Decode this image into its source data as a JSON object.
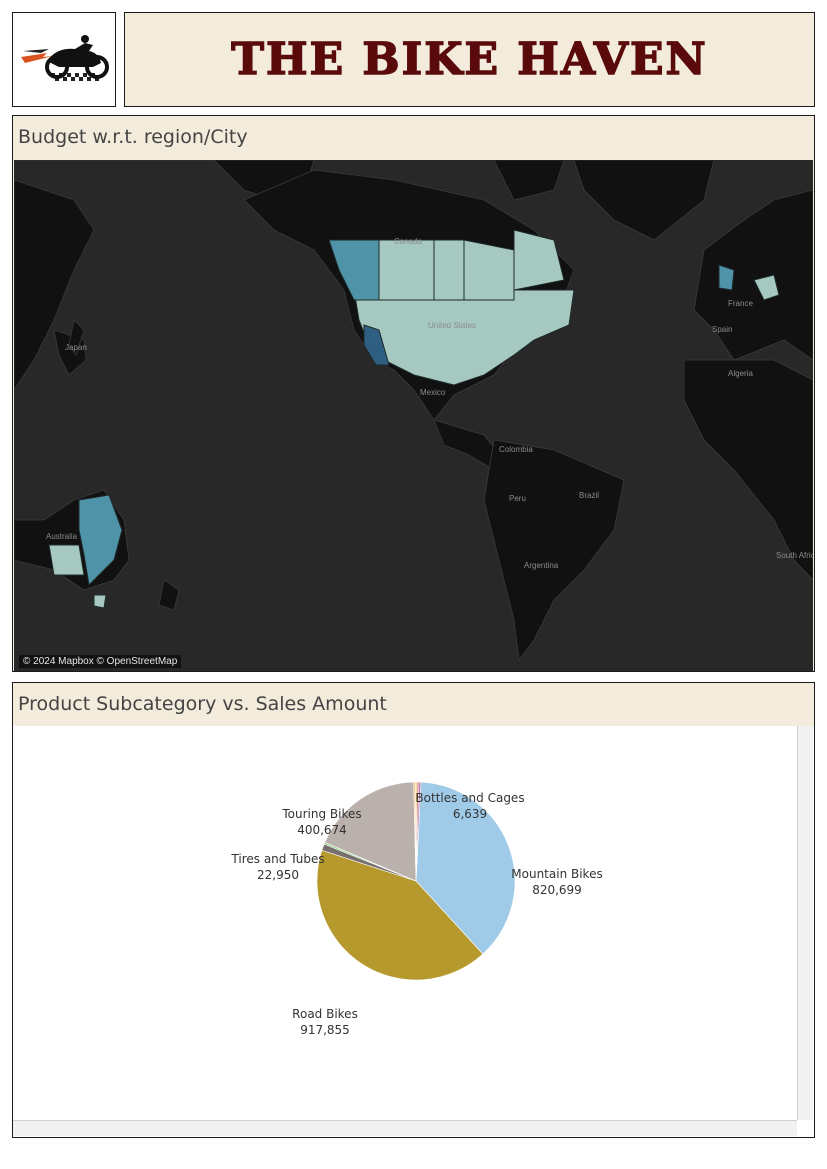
{
  "header": {
    "title": "THE BIKE HAVEN",
    "logo_icon": "motorbike-logo-icon"
  },
  "map_panel": {
    "title": "Budget w.r.t. region/City",
    "credit": "© 2024 Mapbox © OpenStreetMap",
    "place_labels": [
      "Canada",
      "United States",
      "Mexico",
      "Japan",
      "Australia",
      "France",
      "Spain",
      "Algeria",
      "Colombia",
      "Peru",
      "Brazil",
      "Argentina",
      "South Africa"
    ]
  },
  "product_panel": {
    "title": "Product Subcategory vs. Sales Amount"
  },
  "chart_data": {
    "type": "pie",
    "title": "Product Subcategory vs. Sales Amount",
    "slices": [
      {
        "label": "Mountain Bikes",
        "value": 820699,
        "display": "820,699",
        "color": "#a0cbe8"
      },
      {
        "label": "Road Bikes",
        "value": 917855,
        "display": "917,855",
        "color": "#b6992d"
      },
      {
        "label": "Tires and Tubes",
        "value": 22950,
        "display": "22,950",
        "color": "#79706e"
      },
      {
        "label": "",
        "value": 6500,
        "display": "",
        "color": "#8cd17d"
      },
      {
        "label": "Touring Bikes",
        "value": 400674,
        "display": "400,674",
        "color": "#bab0ac"
      },
      {
        "label": "",
        "value": 6000,
        "display": "",
        "color": "#ffbe7d"
      },
      {
        "label": "",
        "value": 6000,
        "display": "",
        "color": "#f1ce63"
      },
      {
        "label": "Bottles and Cages",
        "value": 6639,
        "display": "6,639",
        "color": "#d37295"
      },
      {
        "label": "",
        "value": 7000,
        "display": "",
        "color": "#b07aa1"
      }
    ],
    "labelled": [
      "Touring Bikes",
      "Bottles and Cages",
      "Tires and Tubes",
      "Mountain Bikes",
      "Road Bikes"
    ]
  }
}
